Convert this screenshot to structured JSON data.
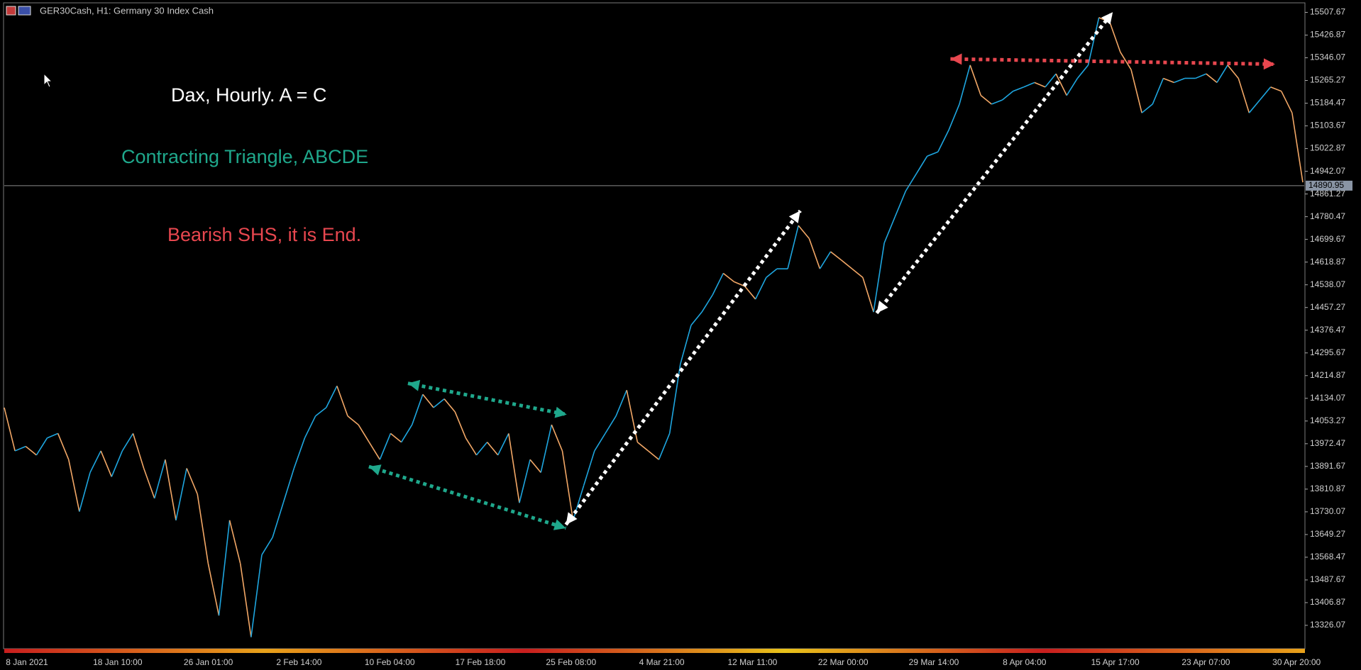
{
  "chart_data": {
    "type": "line",
    "header": "GER30Cash, H1:  Germany 30 Index Cash",
    "annotations": [
      {
        "text": "Dax, Hourly. A = C",
        "color": "#ffffff"
      },
      {
        "text": "Contracting Triangle, ABCDE",
        "color": "#1fa88c"
      },
      {
        "text": "Bearish SHS, it is End.",
        "color": "#e8474f"
      }
    ],
    "x_labels": [
      "8 Jan 2021",
      "18 Jan 10:00",
      "26 Jan 01:00",
      "2 Feb 14:00",
      "10 Feb 04:00",
      "17 Feb 18:00",
      "25 Feb 08:00",
      "4 Mar 21:00",
      "12 Mar 11:00",
      "22 Mar 00:00",
      "29 Mar 14:00",
      "8 Apr 04:00",
      "15 Apr 17:00",
      "23 Apr 07:00",
      "30 Apr 20:00"
    ],
    "series": [
      {
        "name": "GER30Cash",
        "up_color": "#1ea6e0",
        "down_color": "#f2a766",
        "values": [
          14101,
          13947,
          13963,
          13932,
          13993,
          14009,
          13916,
          13731,
          13870,
          13947,
          13855,
          13947,
          14009,
          13885,
          13778,
          13916,
          13700,
          13885,
          13793,
          13546,
          13361,
          13700,
          13546,
          13284,
          13577,
          13639,
          13762,
          13885,
          13993,
          14071,
          14101,
          14178,
          14071,
          14040,
          13978,
          13916,
          14009,
          13978,
          14040,
          14148,
          14101,
          14132,
          14086,
          13993,
          13932,
          13978,
          13932,
          14009,
          13762,
          13916,
          13870,
          14040,
          13947,
          13700,
          13824,
          13947,
          14009,
          14071,
          14163,
          13978,
          13947,
          13916,
          14009,
          14256,
          14394,
          14441,
          14502,
          14579,
          14549,
          14533,
          14487,
          14564,
          14595,
          14595,
          14749,
          14703,
          14595,
          14656,
          14626,
          14595,
          14564,
          14441,
          14687,
          14780,
          14872,
          14934,
          14996,
          15011,
          15088,
          15181,
          15320,
          15212,
          15181,
          15196,
          15227,
          15242,
          15258,
          15242,
          15289,
          15212,
          15273,
          15320,
          15489,
          15474,
          15366,
          15304,
          15150,
          15181,
          15273,
          15258,
          15273,
          15273,
          15289,
          15258,
          15320,
          15273,
          15150,
          15196,
          15242,
          15227,
          15150,
          14903
        ]
      }
    ],
    "current_price": 14890.95,
    "ylim": [
      13242.8,
      15541.6
    ],
    "yticks": [
      15507.67,
      15426.87,
      15346.07,
      15265.27,
      15184.47,
      15103.67,
      15022.87,
      14942.07,
      14861.27,
      14780.47,
      14699.67,
      14618.87,
      14538.07,
      14457.27,
      14376.47,
      14295.67,
      14214.87,
      14134.07,
      14053.27,
      13972.47,
      13891.67,
      13810.87,
      13730.07,
      13649.27,
      13568.47,
      13487.67,
      13406.87,
      13326.07
    ]
  }
}
